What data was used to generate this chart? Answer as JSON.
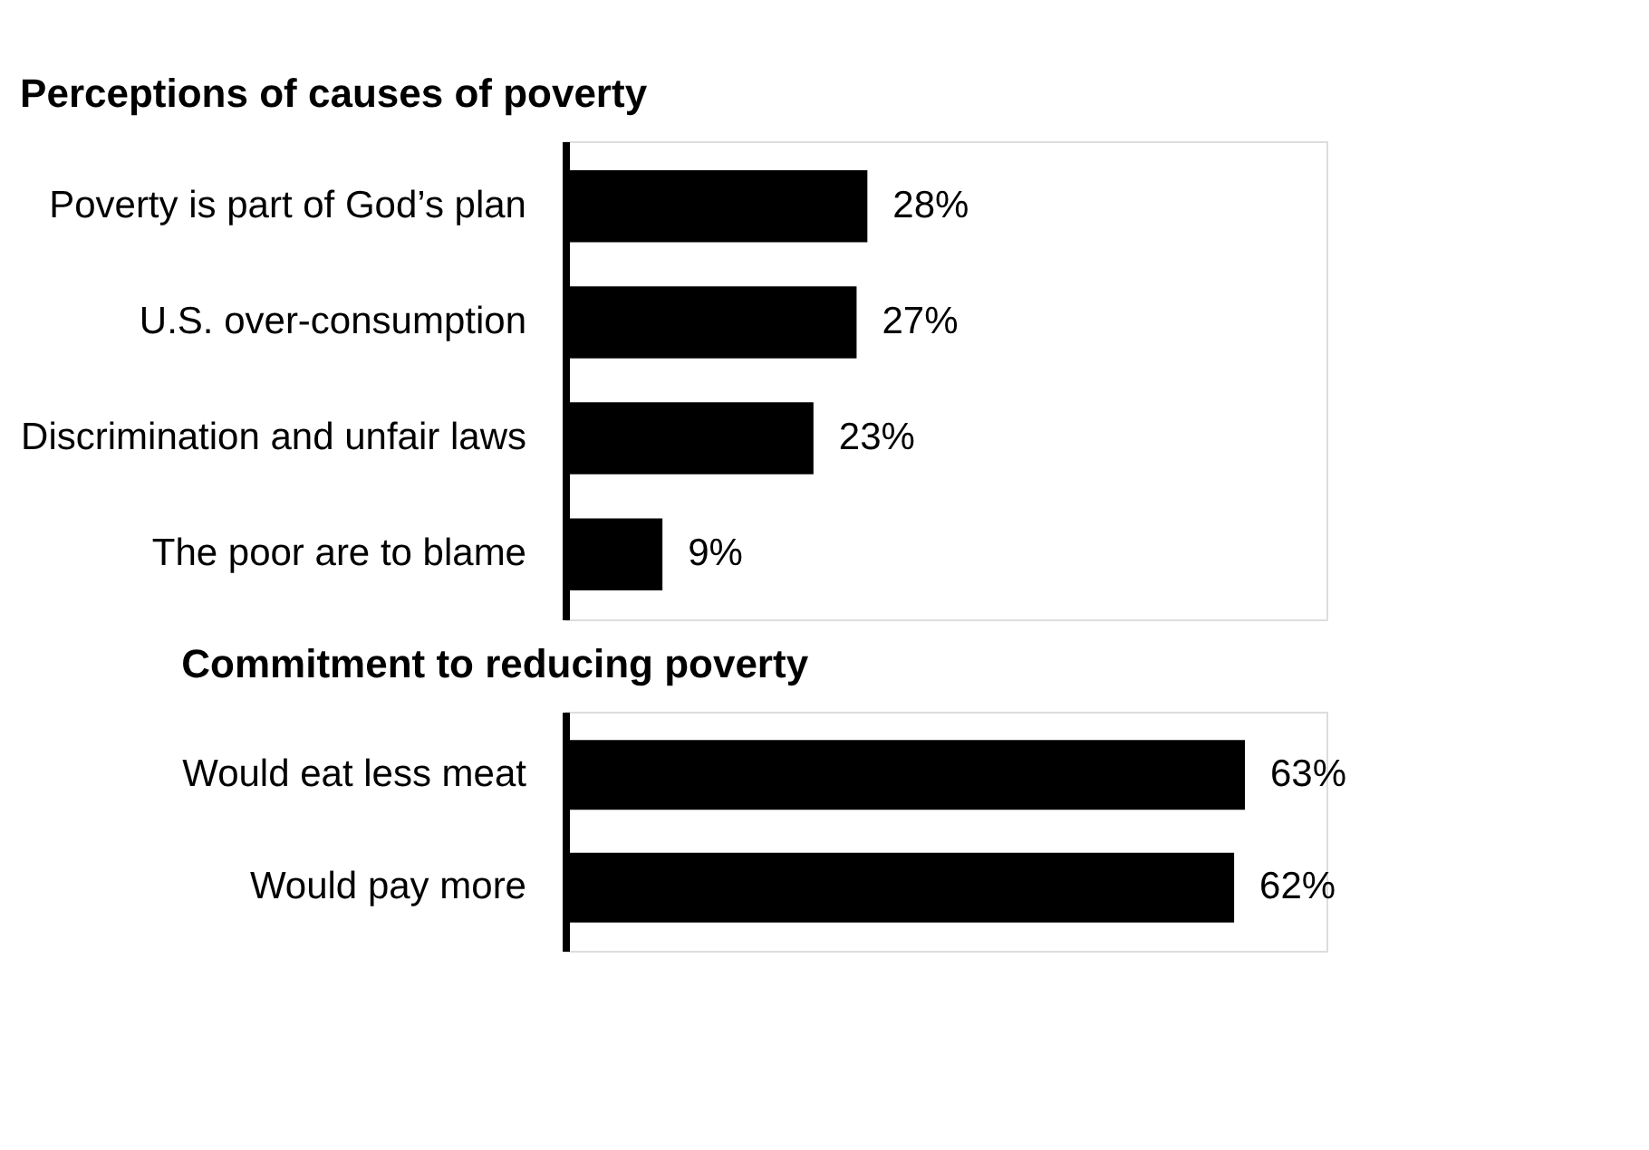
{
  "chart_data": [
    {
      "type": "bar",
      "orientation": "horizontal",
      "title": "Perceptions of causes of poverty",
      "categories": [
        "Poverty is part of God’s plan",
        "U.S. over-consumption",
        "Discrimination and unfair laws",
        "The poor are to blame"
      ],
      "values": [
        28,
        27,
        23,
        9
      ],
      "value_labels": [
        "28%",
        "27%",
        "23%",
        "9%"
      ],
      "color": "#000000"
    },
    {
      "type": "bar",
      "orientation": "horizontal",
      "title": "Commitment to reducing poverty",
      "categories": [
        "Would eat less meat",
        "Would pay more"
      ],
      "values": [
        63,
        62
      ],
      "value_labels": [
        "63%",
        "62%"
      ],
      "color": "#000000"
    }
  ]
}
